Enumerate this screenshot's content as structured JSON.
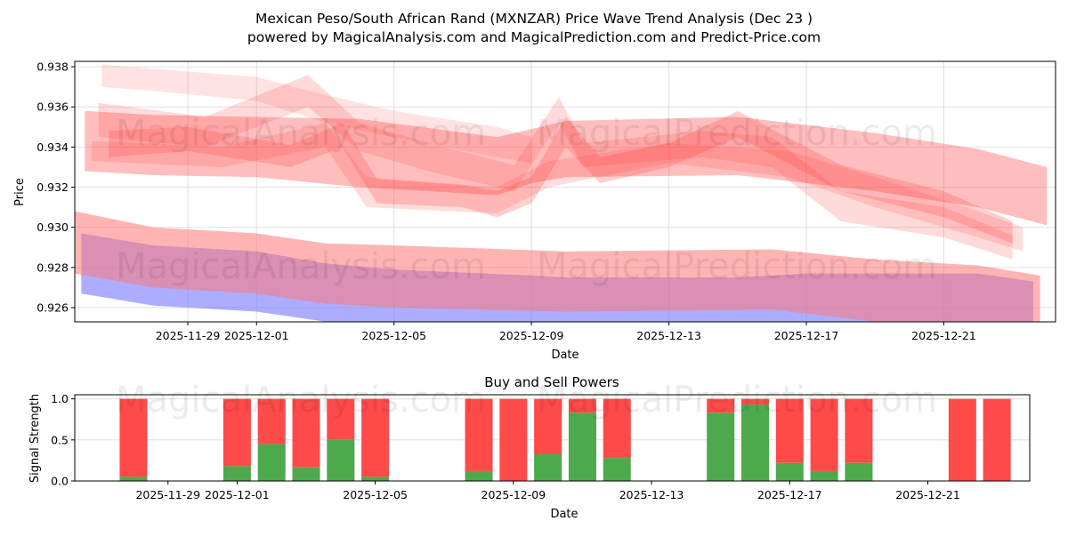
{
  "title_line1": "Mexican Peso/South African Rand (MXNZAR) Price Wave Trend Analysis (Dec 23 )",
  "title_line2": "powered by MagicalAnalysis.com and MagicalPrediction.com and Predict-Price.com",
  "watermarks": [
    "MagicalAnalysis.com",
    "MagicalPrediction.com"
  ],
  "colors": {
    "red_band": "#ff4444",
    "pink_band": "#ff7777",
    "blue_band": "#7777ff",
    "buy": "#4caa4c",
    "sell": "#ff4a4a"
  },
  "chart_data": [
    {
      "type": "area",
      "title": "",
      "xlabel": "Date",
      "ylabel": "Price",
      "base_date": "2025-11-29",
      "xlim_days": [
        -3.29,
        25.25
      ],
      "ylim": [
        0.92529,
        0.93827
      ],
      "yticks": [
        "0.926",
        "0.928",
        "0.930",
        "0.932",
        "0.934",
        "0.936",
        "0.938"
      ],
      "xticks": [
        {
          "day": 0,
          "label": "2025-11-29"
        },
        {
          "day": 2,
          "label": "2025-12-01"
        },
        {
          "day": 6,
          "label": "2025-12-05"
        },
        {
          "day": 10,
          "label": "2025-12-09"
        },
        {
          "day": 14,
          "label": "2025-12-13"
        },
        {
          "day": 18,
          "label": "2025-12-17"
        },
        {
          "day": 22,
          "label": "2025-12-21"
        }
      ],
      "grid": true,
      "bands": [
        {
          "name": "blue-band",
          "color": "#7777ff",
          "alpha": 0.6,
          "points": [
            [
              -3.1,
              0.9267,
              0.9297
            ],
            [
              -1,
              0.9261,
              0.9291
            ],
            [
              2,
              0.9258,
              0.9288
            ],
            [
              4,
              0.9253,
              0.9282
            ],
            [
              6,
              0.9251,
              0.9279
            ],
            [
              10,
              0.9249,
              0.9276
            ],
            [
              11,
              0.9248,
              0.9275
            ],
            [
              16,
              0.9249,
              0.9275
            ],
            [
              18,
              0.9246,
              0.9277
            ],
            [
              20,
              0.924,
              0.9277
            ],
            [
              23,
              0.9238,
              0.9277
            ],
            [
              24.6,
              0.9236,
              0.9273
            ]
          ]
        },
        {
          "name": "pink-band",
          "color": "#ff7777",
          "alpha": 0.55,
          "points": [
            [
              -3.3,
              0.9277,
              0.9308
            ],
            [
              -1,
              0.927,
              0.93
            ],
            [
              2,
              0.9267,
              0.9297
            ],
            [
              4,
              0.9262,
              0.9292
            ],
            [
              6,
              0.926,
              0.9291
            ],
            [
              11,
              0.9258,
              0.9288
            ],
            [
              17,
              0.9259,
              0.9289
            ],
            [
              20,
              0.9253,
              0.9284
            ],
            [
              23,
              0.925,
              0.9281
            ],
            [
              24.8,
              0.9246,
              0.9276
            ]
          ]
        },
        {
          "name": "red-band-main",
          "color": "#ff4444",
          "alpha": 0.35,
          "points": [
            [
              -3,
              0.9328,
              0.9358
            ],
            [
              -1,
              0.9326,
              0.9356
            ],
            [
              2,
              0.9325,
              0.9355
            ],
            [
              5,
              0.932,
              0.9354
            ],
            [
              9,
              0.9316,
              0.9345
            ],
            [
              10,
              0.9322,
              0.9349
            ],
            [
              11,
              0.9325,
              0.9353
            ],
            [
              16,
              0.9326,
              0.9355
            ],
            [
              20,
              0.9318,
              0.9347
            ],
            [
              23,
              0.931,
              0.9339
            ],
            [
              25,
              0.9301,
              0.933
            ]
          ]
        },
        {
          "name": "red-band-top",
          "color": "#ff4444",
          "alpha": 0.15,
          "points": [
            [
              -2.5,
              0.937,
              0.9381
            ],
            [
              -1,
              0.9368,
              0.9379
            ],
            [
              2,
              0.9363,
              0.9375
            ],
            [
              4,
              0.9352,
              0.9366
            ],
            [
              6,
              0.9345,
              0.9358
            ],
            [
              9,
              0.9335,
              0.935
            ],
            [
              10,
              0.9332,
              0.9345
            ]
          ]
        },
        {
          "name": "red-band-zigzag",
          "color": "#ff4444",
          "alpha": 0.25,
          "points": [
            [
              -2.3,
              0.9335,
              0.9348
            ],
            [
              0,
              0.9338,
              0.935
            ],
            [
              3,
              0.933,
              0.9341
            ],
            [
              4.5,
              0.934,
              0.9352
            ],
            [
              5.5,
              0.9312,
              0.9324
            ],
            [
              8,
              0.931,
              0.9321
            ],
            [
              9,
              0.9305,
              0.9318
            ],
            [
              10,
              0.9312,
              0.9325
            ],
            [
              11,
              0.934,
              0.9355
            ],
            [
              12,
              0.9322,
              0.9335
            ],
            [
              14,
              0.933,
              0.9342
            ],
            [
              16,
              0.9345,
              0.9358
            ],
            [
              19,
              0.9318,
              0.9331
            ],
            [
              22,
              0.9305,
              0.9318
            ],
            [
              24,
              0.9292,
              0.9303
            ]
          ]
        },
        {
          "name": "red-band-spike",
          "color": "#ff4444",
          "alpha": 0.2,
          "points": [
            [
              -2.6,
              0.9345,
              0.9362
            ],
            [
              0.5,
              0.934,
              0.9355
            ],
            [
              3.5,
              0.936,
              0.9376
            ],
            [
              5,
              0.9338,
              0.9352
            ],
            [
              7,
              0.9328,
              0.9342
            ],
            [
              9.5,
              0.9318,
              0.9331
            ],
            [
              10.8,
              0.9352,
              0.9365
            ],
            [
              11.5,
              0.933,
              0.9342
            ],
            [
              15,
              0.9335,
              0.9348
            ],
            [
              17,
              0.933,
              0.9345
            ],
            [
              19,
              0.9303,
              0.9318
            ],
            [
              22,
              0.9295,
              0.931
            ],
            [
              24,
              0.9284,
              0.9296
            ]
          ]
        },
        {
          "name": "red-band-low",
          "color": "#ff4444",
          "alpha": 0.18,
          "points": [
            [
              -2.8,
              0.9333,
              0.9343
            ],
            [
              1,
              0.933,
              0.934
            ],
            [
              4,
              0.934,
              0.9352
            ],
            [
              5.2,
              0.931,
              0.9325
            ],
            [
              9,
              0.9307,
              0.932
            ],
            [
              10.5,
              0.932,
              0.9333
            ],
            [
              14,
              0.9332,
              0.9342
            ],
            [
              17.5,
              0.9325,
              0.9338
            ],
            [
              20,
              0.931,
              0.9325
            ],
            [
              23,
              0.9295,
              0.9308
            ],
            [
              24.3,
              0.9288,
              0.93
            ]
          ]
        }
      ]
    },
    {
      "type": "bar",
      "title": "Buy and Sell Powers",
      "xlabel": "Date",
      "ylabel": "Signal Strength",
      "base_date": "2025-11-29",
      "xlim_days": [
        -2.7,
        24.95
      ],
      "ylim": [
        0,
        1.05
      ],
      "yticks": [
        "0.0",
        "0.5",
        "1.0"
      ],
      "xticks": [
        {
          "day": 0,
          "label": "2025-11-29"
        },
        {
          "day": 2,
          "label": "2025-12-01"
        },
        {
          "day": 6,
          "label": "2025-12-05"
        },
        {
          "day": 10,
          "label": "2025-12-09"
        },
        {
          "day": 14,
          "label": "2025-12-13"
        },
        {
          "day": 18,
          "label": "2025-12-17"
        },
        {
          "day": 22,
          "label": "2025-12-21"
        }
      ],
      "series": [
        {
          "name": "Buy",
          "color": "#4caa4c"
        },
        {
          "name": "Sell",
          "color": "#ff4a4a"
        }
      ],
      "bars": [
        {
          "day": -1,
          "buy": 0.05
        },
        {
          "day": 2,
          "buy": 0.18
        },
        {
          "day": 3,
          "buy": 0.45
        },
        {
          "day": 4,
          "buy": 0.17
        },
        {
          "day": 5,
          "buy": 0.5
        },
        {
          "day": 6,
          "buy": 0.05
        },
        {
          "day": 9,
          "buy": 0.12
        },
        {
          "day": 10,
          "buy": 0.0
        },
        {
          "day": 11,
          "buy": 0.33
        },
        {
          "day": 12,
          "buy": 0.83
        },
        {
          "day": 13,
          "buy": 0.28
        },
        {
          "day": 16,
          "buy": 0.83
        },
        {
          "day": 17,
          "buy": 0.93
        },
        {
          "day": 18,
          "buy": 0.22
        },
        {
          "day": 19,
          "buy": 0.12
        },
        {
          "day": 20,
          "buy": 0.22
        },
        {
          "day": 23,
          "buy": 0.0
        },
        {
          "day": 24,
          "buy": 0.0
        }
      ]
    }
  ]
}
